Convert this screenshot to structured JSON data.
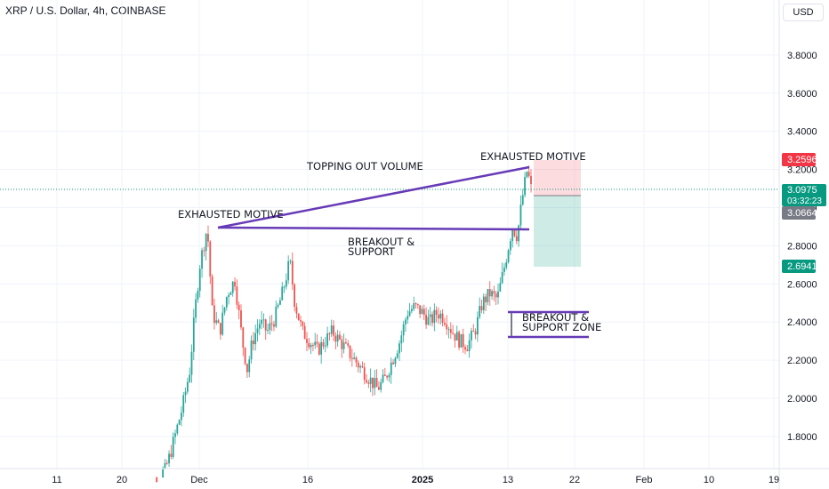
{
  "header": {
    "title": "XRP / U.S. Dollar, 4h, COINBASE",
    "currency_button": "USD"
  },
  "chart_data": {
    "type": "candlestick",
    "y_axis_ticks": [
      "1.8000",
      "2.0000",
      "2.2000",
      "2.4000",
      "2.6000",
      "2.8000",
      "3.0000",
      "3.2000",
      "3.4000",
      "3.6000",
      "3.8000"
    ],
    "ylim": [
      1.64,
      4.0
    ],
    "x_axis_ticks": [
      "11",
      "20",
      "Dec",
      "16",
      "2025",
      "13",
      "22",
      "Feb",
      "10",
      "19"
    ],
    "price_labels": [
      {
        "value": "3.2596",
        "color": "#f23645"
      },
      {
        "value": "3.0975",
        "sub": "03:32:23",
        "color": "#089981"
      },
      {
        "value": "3.0664",
        "color": "#787b86"
      },
      {
        "value": "2.6941",
        "color": "#089981"
      }
    ],
    "annotations": {
      "exhausted_left": "EXHAUSTED MOTIVE",
      "topping_volume": "TOPPING OUT VOLUME",
      "exhausted_right": "EXHAUSTED MOTIVE",
      "breakout_support_1": "BREAKOUT &",
      "breakout_support_2": "SUPPORT",
      "breakout_zone_1": "BREAKOUT &",
      "breakout_zone_2": "SUPPORT ZONE"
    },
    "colors": {
      "up": "#26a69a",
      "down": "#ef5350",
      "annotation_line": "#673ab7"
    },
    "price_path": [
      [
        0.0,
        1.5
      ],
      [
        0.03,
        1.55
      ],
      [
        0.06,
        1.6
      ],
      [
        0.09,
        1.62
      ],
      [
        0.11,
        1.7
      ],
      [
        0.13,
        1.8
      ],
      [
        0.16,
        1.95
      ],
      [
        0.19,
        2.15
      ],
      [
        0.21,
        2.45
      ],
      [
        0.23,
        2.7
      ],
      [
        0.26,
        2.9
      ],
      [
        0.28,
        2.45
      ],
      [
        0.31,
        2.35
      ],
      [
        0.34,
        2.55
      ],
      [
        0.37,
        2.62
      ],
      [
        0.4,
        2.3
      ],
      [
        0.42,
        2.15
      ],
      [
        0.44,
        2.3
      ],
      [
        0.47,
        2.4
      ],
      [
        0.5,
        2.35
      ],
      [
        0.53,
        2.42
      ],
      [
        0.56,
        2.55
      ],
      [
        0.59,
        2.72
      ],
      [
        0.61,
        2.5
      ],
      [
        0.64,
        2.35
      ],
      [
        0.67,
        2.3
      ],
      [
        0.7,
        2.25
      ],
      [
        0.73,
        2.3
      ],
      [
        0.76,
        2.35
      ],
      [
        0.79,
        2.3
      ],
      [
        0.82,
        2.25
      ],
      [
        0.85,
        2.2
      ],
      [
        0.88,
        2.15
      ],
      [
        0.91,
        2.1
      ],
      [
        0.94,
        2.05
      ],
      [
        0.97,
        2.1
      ],
      [
        1.0,
        2.2
      ],
      [
        1.03,
        2.3
      ],
      [
        1.06,
        2.45
      ],
      [
        1.09,
        2.48
      ],
      [
        1.12,
        2.45
      ],
      [
        1.15,
        2.4
      ],
      [
        1.18,
        2.45
      ],
      [
        1.21,
        2.42
      ],
      [
        1.24,
        2.35
      ],
      [
        1.27,
        2.3
      ],
      [
        1.3,
        2.28
      ],
      [
        1.33,
        2.35
      ],
      [
        1.36,
        2.5
      ],
      [
        1.39,
        2.55
      ],
      [
        1.42,
        2.52
      ],
      [
        1.45,
        2.7
      ],
      [
        1.48,
        2.9
      ],
      [
        1.5,
        2.85
      ],
      [
        1.52,
        3.05
      ],
      [
        1.54,
        3.2
      ],
      [
        1.555,
        3.1
      ]
    ]
  }
}
